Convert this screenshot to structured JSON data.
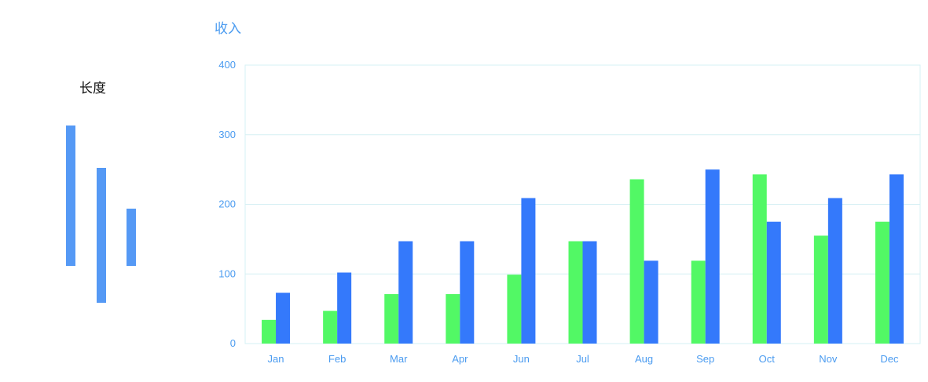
{
  "legend": {
    "title": "长度",
    "bar_color": "#5599f5"
  },
  "chart_data": {
    "type": "bar",
    "title": "收入",
    "xlabel": "",
    "ylabel": "",
    "categories": [
      "Jan",
      "Feb",
      "Mar",
      "Apr",
      "Jun",
      "Jul",
      "Aug",
      "Sep",
      "Oct",
      "Nov",
      "Dec"
    ],
    "series": [
      {
        "color": "#52f865",
        "values": [
          34,
          47,
          71,
          71,
          99,
          147,
          236,
          119,
          243,
          155,
          175
        ]
      },
      {
        "color": "#3479fb",
        "values": [
          73,
          102,
          147,
          147,
          209,
          147,
          119,
          250,
          175,
          209,
          243
        ]
      }
    ],
    "ylim": [
      0,
      400
    ],
    "yticks": [
      0,
      100,
      200,
      300,
      400
    ],
    "grid": true,
    "colors": {
      "axis_text": "#4a9bf0",
      "grid": "#d6f0f4"
    }
  }
}
